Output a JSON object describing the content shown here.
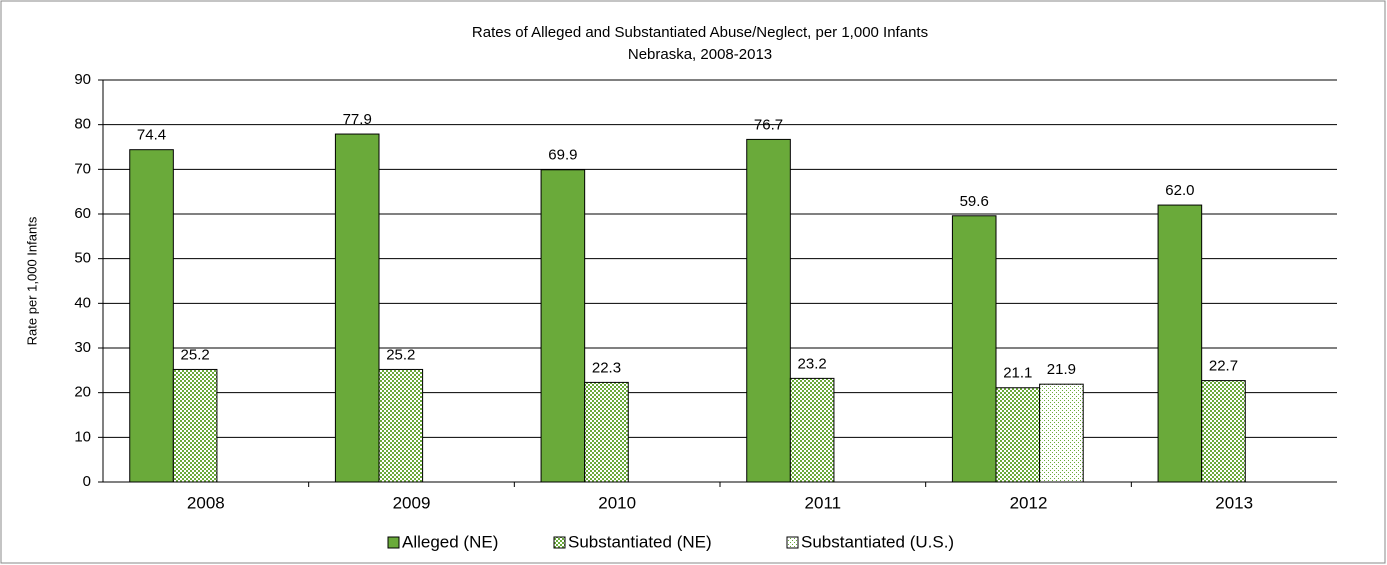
{
  "chart_data": {
    "type": "bar",
    "title": "Rates of Alleged and Substantiated Abuse/Neglect, per 1,000 Infants",
    "subtitle": "Nebraska, 2008-2013",
    "y_label": "Rate per 1,000 Infants",
    "categories": [
      "2008",
      "2009",
      "2010",
      "2011",
      "2012",
      "2013"
    ],
    "series": [
      {
        "name": "Alleged (NE)",
        "color": "#6aaa3a",
        "pattern": "solid",
        "values": [
          74.4,
          77.9,
          69.9,
          76.7,
          59.6,
          62.0
        ],
        "value_labels": [
          "74.4",
          "77.9",
          "69.9",
          "76.7",
          "59.6",
          "62.0"
        ]
      },
      {
        "name": "Substantiated (NE)",
        "color": "#6aaa3a",
        "pattern": "checker",
        "values": [
          25.2,
          25.2,
          22.3,
          23.2,
          21.1,
          22.7
        ]
      },
      {
        "name": "Substantiated (U.S.)",
        "color": "#6aaa3a",
        "pattern": "dots",
        "values": [
          null,
          null,
          null,
          null,
          21.9,
          null
        ]
      }
    ],
    "ylim": [
      0,
      90
    ],
    "yticks": [
      0,
      10,
      20,
      30,
      40,
      50,
      60,
      70,
      80,
      90
    ],
    "grid": true,
    "legend": "bottom"
  }
}
